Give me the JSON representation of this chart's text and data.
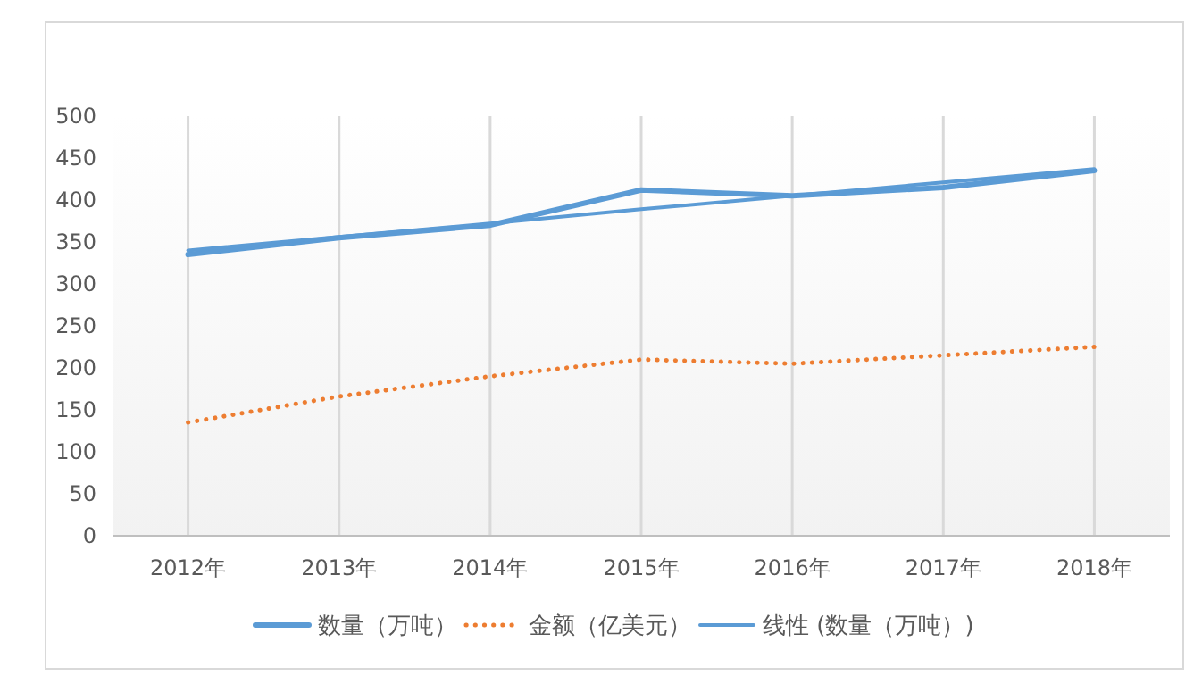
{
  "chart_data": {
    "type": "line",
    "categories": [
      "2012年",
      "2013年",
      "2014年",
      "2015年",
      "2016年",
      "2017年",
      "2018年"
    ],
    "series": [
      {
        "name": "数量（万吨）",
        "color": "#5b9bd5",
        "values": [
          335,
          355,
          370,
          412,
          405,
          415,
          435
        ],
        "line_style": "solid"
      },
      {
        "name": "金额（亿美元）",
        "color": "#ed7d31",
        "values": [
          135,
          166,
          190,
          210,
          205,
          215,
          225
        ],
        "line_style": "dotted"
      },
      {
        "name": "线性 (数量（万吨）)",
        "color": "#5b9bd5",
        "values": [
          340,
          356,
          372,
          389,
          405,
          421,
          437
        ],
        "line_style": "solid"
      }
    ],
    "ylim": [
      0,
      500
    ],
    "yticks": [
      0,
      50,
      100,
      150,
      200,
      250,
      300,
      350,
      400,
      450,
      500
    ],
    "grid": "x",
    "legend": "bottom"
  }
}
